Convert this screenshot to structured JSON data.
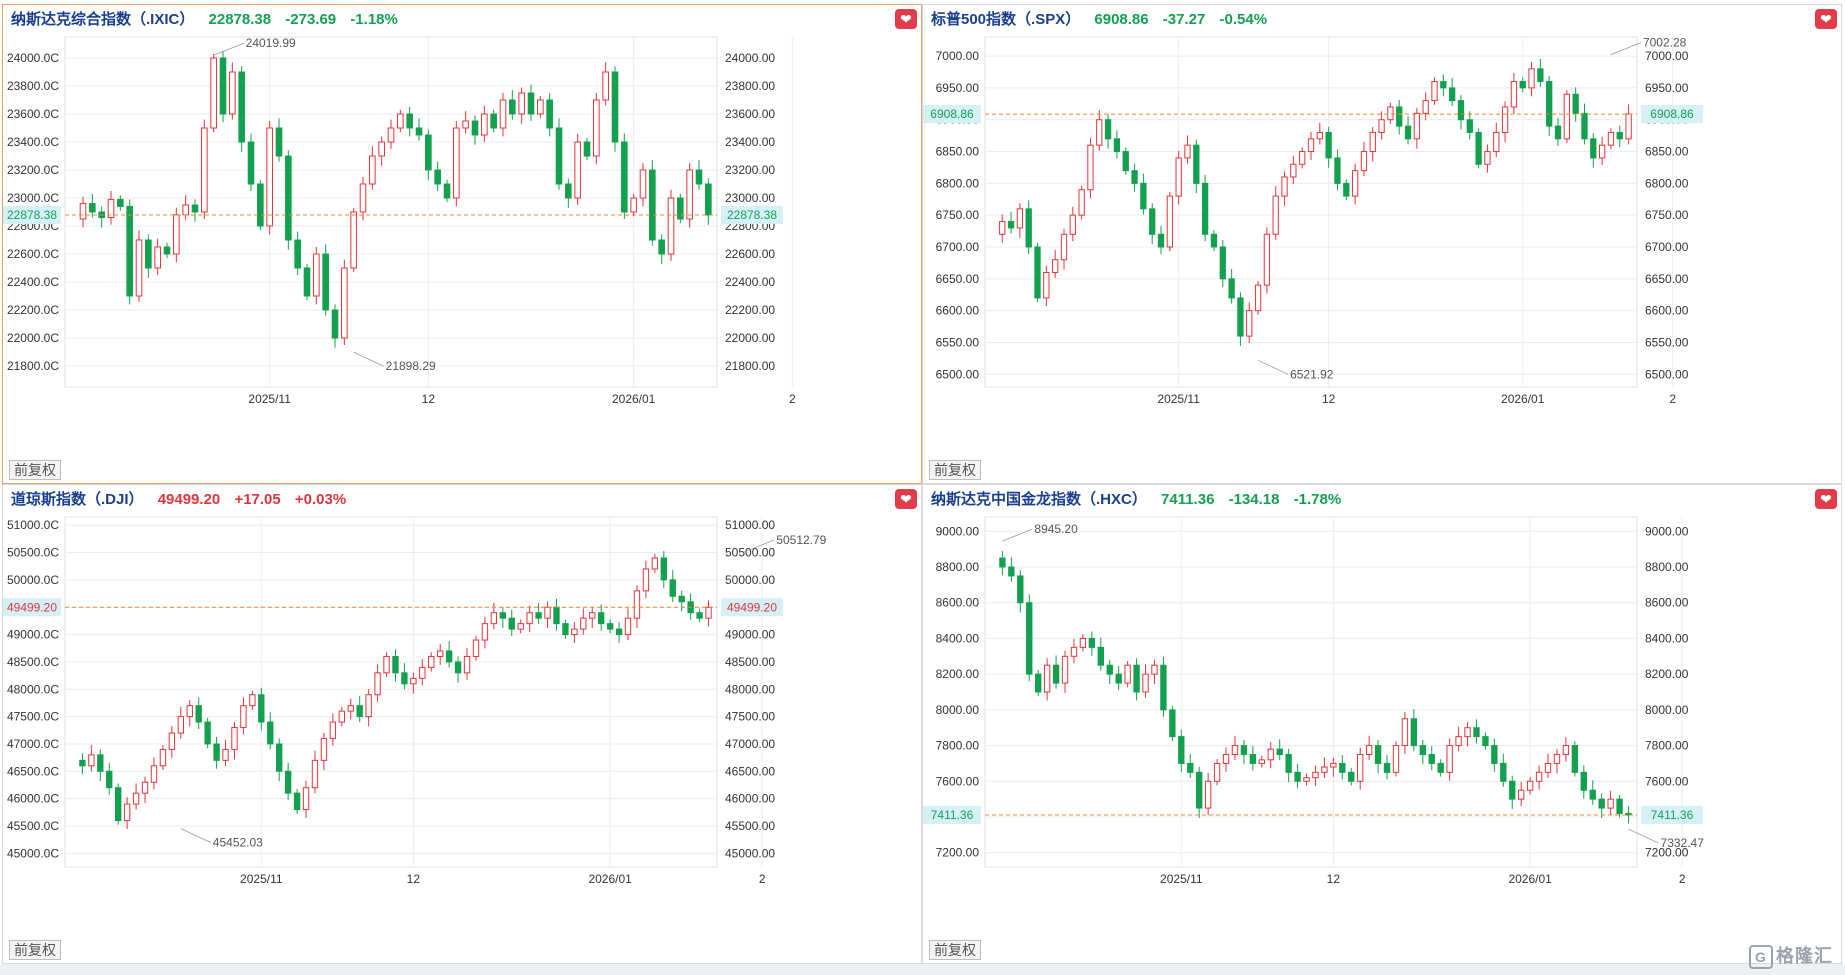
{
  "colors": {
    "up": "#e0353b",
    "down": "#13a04f",
    "ref": "#e8892f",
    "grid": "#ececec"
  },
  "panels": [
    {
      "name": "纳斯达克综合指数（.IXIC）",
      "price": "22878.38",
      "change": "-273.69",
      "pct": "-1.18%",
      "dir": "down",
      "fq": "前复权",
      "fav_icon": "heart-icon",
      "chart_data": {
        "type": "candlestick",
        "ylim": [
          21650,
          24150
        ],
        "yticks": [
          21800,
          22000,
          22200,
          22400,
          22600,
          22800,
          23000,
          23200,
          23400,
          23600,
          23800,
          24000
        ],
        "ytick_labels_left": [
          "21800.0C",
          "22000.0C",
          "22200.0C",
          "22400.0C",
          "22600.0C",
          "22800.0C",
          "23000.0C",
          "23200.0C",
          "23400.0C",
          "23600.0C",
          "23800.0C",
          "24000.0C"
        ],
        "ytick_labels_right": [
          "21800.00",
          "22000.00",
          "22200.00",
          "22400.00",
          "22600.00",
          "22800.00",
          "23000.00",
          "23200.00",
          "23400.00",
          "23600.00",
          "23800.00",
          "24000.00"
        ],
        "xticks": [
          {
            "label": "2025/11",
            "i": 21
          },
          {
            "label": "12",
            "i": 38
          },
          {
            "label": "2026/01",
            "i": 60
          },
          {
            "label": "2",
            "i": 77
          }
        ],
        "last_label": "22878.38",
        "annotations": [
          {
            "text": "24019.99",
            "i": 15,
            "value": 24019.99
          },
          {
            "text": "21898.29",
            "i": 30,
            "value": 21898.29
          }
        ],
        "path": [
          22850,
          22960,
          22900,
          22860,
          22990,
          22940,
          22300,
          22700,
          22500,
          22650,
          22600,
          22880,
          22950,
          22900,
          23500,
          24000,
          23600,
          23900,
          23400,
          23100,
          22800,
          23500,
          23300,
          22700,
          22500,
          22300,
          22600,
          22200,
          22000,
          22500,
          22900,
          23100,
          23300,
          23400,
          23500,
          23600,
          23500,
          23450,
          23200,
          23100,
          23000,
          23500,
          23550,
          23450,
          23600,
          23500,
          23700,
          23600,
          23750,
          23600,
          23700,
          23500,
          23100,
          23000,
          23400,
          23300,
          23700,
          23900,
          23400,
          22900,
          23000,
          23200,
          22700,
          22600,
          23000,
          22850,
          23200,
          23100,
          22878.38
        ]
      }
    },
    {
      "name": "标普500指数（.SPX）",
      "price": "6908.86",
      "change": "-37.27",
      "pct": "-0.54%",
      "dir": "down",
      "fq": "前复权",
      "fav_icon": "heart-icon",
      "chart_data": {
        "type": "candlestick",
        "ylim": [
          6480,
          7030
        ],
        "yticks": [
          6500,
          6550,
          6600,
          6650,
          6700,
          6750,
          6800,
          6850,
          6900,
          6950,
          7000
        ],
        "ytick_labels_left": [
          "6500.00",
          "6550.00",
          "6600.00",
          "6650.00",
          "6700.00",
          "6750.00",
          "6800.00",
          "6850.00",
          "6900.00",
          "6950.00",
          "7000.00"
        ],
        "ytick_labels_right": [
          "6500.00",
          "6550.00",
          "6600.00",
          "6650.00",
          "6700.00",
          "6750.00",
          "6800.00",
          "6850.00",
          "6900.00",
          "6950.00",
          "7000.00"
        ],
        "xticks": [
          {
            "label": "2025/11",
            "i": 21
          },
          {
            "label": "12",
            "i": 38
          },
          {
            "label": "2026/01",
            "i": 60
          },
          {
            "label": "2",
            "i": 77
          }
        ],
        "last_label": "6908.86",
        "annotations": [
          {
            "text": "7002.28",
            "i": 70,
            "value": 7002.28
          },
          {
            "text": "6521.92",
            "i": 30,
            "value": 6521.92
          }
        ],
        "path": [
          6720,
          6740,
          6730,
          6760,
          6700,
          6620,
          6660,
          6680,
          6720,
          6750,
          6790,
          6860,
          6900,
          6870,
          6850,
          6820,
          6800,
          6760,
          6720,
          6700,
          6780,
          6840,
          6860,
          6800,
          6720,
          6700,
          6650,
          6620,
          6560,
          6600,
          6640,
          6720,
          6780,
          6810,
          6830,
          6850,
          6870,
          6880,
          6840,
          6800,
          6780,
          6820,
          6850,
          6880,
          6900,
          6920,
          6890,
          6870,
          6910,
          6930,
          6960,
          6950,
          6930,
          6900,
          6880,
          6830,
          6850,
          6880,
          6920,
          6960,
          6950,
          6980,
          6960,
          6890,
          6870,
          6940,
          6910,
          6870,
          6840,
          6860,
          6880,
          6870,
          6908.86
        ]
      }
    },
    {
      "name": "道琼斯指数（.DJI）",
      "price": "49499.20",
      "change": "+17.05",
      "pct": "+0.03%",
      "dir": "up",
      "fq": "前复权",
      "fav_icon": "heart-icon",
      "chart_data": {
        "type": "candlestick",
        "ylim": [
          44750,
          51150
        ],
        "yticks": [
          45000,
          45500,
          46000,
          46500,
          47000,
          47500,
          48000,
          48500,
          49000,
          49500,
          50000,
          50500,
          51000
        ],
        "ytick_labels_left": [
          "45000.0C",
          "45500.0C",
          "46000.0C",
          "46500.0C",
          "47000.0C",
          "47500.0C",
          "48000.0C",
          "48500.0C",
          "49000.0C",
          "49500.0C",
          "50000.0C",
          "50500.0C",
          "51000.0C"
        ],
        "ytick_labels_right": [
          "45000.00",
          "45500.00",
          "46000.00",
          "46500.00",
          "47000.00",
          "47500.00",
          "48000.00",
          "48500.00",
          "49000.00",
          "49500.00",
          "50000.00",
          "50500.00",
          "51000.00"
        ],
        "xticks": [
          {
            "label": "2025/11",
            "i": 21
          },
          {
            "label": "12",
            "i": 38
          },
          {
            "label": "2026/01",
            "i": 60
          },
          {
            "label": "2",
            "i": 77
          }
        ],
        "last_label": "49499.20",
        "annotations": [
          {
            "text": "50512.79",
            "i": 75,
            "value": 50512.79
          },
          {
            "text": "45452.03",
            "i": 12,
            "value": 45452.03
          }
        ],
        "path": [
          46700,
          46600,
          46800,
          46500,
          46200,
          45600,
          45900,
          46100,
          46300,
          46600,
          46900,
          47200,
          47500,
          47700,
          47400,
          47000,
          46700,
          46900,
          47300,
          47700,
          47900,
          47400,
          47000,
          46500,
          46100,
          45800,
          46200,
          46700,
          47100,
          47400,
          47600,
          47700,
          47500,
          47900,
          48300,
          48600,
          48300,
          48100,
          48200,
          48400,
          48600,
          48700,
          48500,
          48300,
          48600,
          48900,
          49200,
          49400,
          49300,
          49100,
          49200,
          49400,
          49300,
          49500,
          49200,
          49000,
          49100,
          49300,
          49400,
          49200,
          49100,
          49000,
          49300,
          49800,
          50200,
          50400,
          50000,
          49700,
          49600,
          49400,
          49300,
          49499.2
        ]
      }
    },
    {
      "name": "纳斯达克中国金龙指数（.HXC）",
      "price": "7411.36",
      "change": "-134.18",
      "pct": "-1.78%",
      "dir": "down",
      "fq": "前复权",
      "fav_icon": "heart-icon",
      "chart_data": {
        "type": "candlestick",
        "ylim": [
          7120,
          9080
        ],
        "yticks": [
          7200,
          7400,
          7600,
          7800,
          8000,
          8200,
          8400,
          8600,
          8800,
          9000
        ],
        "ytick_labels_left": [
          "7200.00",
          "7400.00",
          "7600.00",
          "7800.00",
          "8000.00",
          "8200.00",
          "8400.00",
          "8600.00",
          "8800.00",
          "9000.00"
        ],
        "ytick_labels_right": [
          "7200.00",
          "7400.00",
          "7600.00",
          "7800.00",
          "8000.00",
          "8200.00",
          "8400.00",
          "8600.00",
          "8800.00",
          "9000.00"
        ],
        "xticks": [
          {
            "label": "2025/11",
            "i": 21
          },
          {
            "label": "12",
            "i": 38
          },
          {
            "label": "2026/01",
            "i": 60
          },
          {
            "label": "2",
            "i": 77
          }
        ],
        "last_label": "7411.36",
        "annotations": [
          {
            "text": "8945.20",
            "i": 1,
            "value": 8945.2
          },
          {
            "text": "7332.47",
            "i": 71,
            "value": 7332.47
          }
        ],
        "path": [
          8850,
          8800,
          8750,
          8600,
          8200,
          8100,
          8250,
          8150,
          8300,
          8350,
          8400,
          8350,
          8250,
          8200,
          8150,
          8250,
          8100,
          8200,
          8250,
          8000,
          7850,
          7700,
          7650,
          7450,
          7600,
          7700,
          7750,
          7800,
          7750,
          7700,
          7720,
          7780,
          7750,
          7650,
          7600,
          7620,
          7650,
          7680,
          7700,
          7650,
          7600,
          7750,
          7800,
          7700,
          7650,
          7800,
          7950,
          7800,
          7750,
          7700,
          7650,
          7800,
          7850,
          7900,
          7850,
          7800,
          7700,
          7600,
          7500,
          7550,
          7600,
          7650,
          7700,
          7750,
          7800,
          7650,
          7550,
          7500,
          7450,
          7500,
          7420,
          7411.36
        ]
      }
    }
  ],
  "brand": {
    "icon": "logo-icon",
    "text": "格隆汇"
  }
}
